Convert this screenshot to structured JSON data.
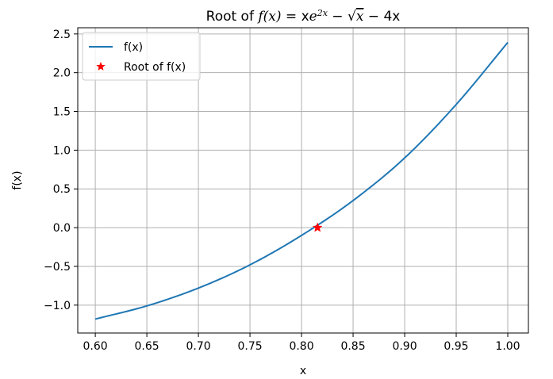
{
  "chart_data": {
    "type": "line",
    "title": {
      "prefix": "Root of ",
      "fx": "f(x)",
      "eq": " = x",
      "e": "e",
      "exp": "2x",
      "minus1": " − ",
      "sqrt_arg": "x",
      "rest": " − 4x"
    },
    "xlabel": "x",
    "ylabel": "f(x)",
    "xlim": [
      0.583,
      1.02
    ],
    "ylim": [
      -1.36,
      2.58
    ],
    "x_ticks": [
      0.6,
      0.65,
      0.7,
      0.75,
      0.8,
      0.85,
      0.9,
      0.95,
      1.0
    ],
    "x_tick_labels": [
      "0.60",
      "0.65",
      "0.70",
      "0.75",
      "0.80",
      "0.85",
      "0.90",
      "0.95",
      "1.00"
    ],
    "y_ticks": [
      -1.0,
      -0.5,
      0.0,
      0.5,
      1.0,
      1.5,
      2.0,
      2.5
    ],
    "y_tick_labels": [
      "−1.0",
      "−0.5",
      "0.0",
      "0.5",
      "1.0",
      "1.5",
      "2.0",
      "2.5"
    ],
    "grid": true,
    "legend_position": "top-left",
    "series": [
      {
        "name": "f(x)",
        "kind": "line",
        "color": "#1f77b4",
        "x": [
          0.6,
          0.65,
          0.7,
          0.75,
          0.8,
          0.85,
          0.9,
          0.95,
          1.0
        ],
        "y": [
          -1.18,
          -1.01,
          -0.78,
          -0.48,
          -0.1,
          0.35,
          0.9,
          1.59,
          2.39
        ]
      },
      {
        "name": "Root of f(x)",
        "kind": "marker",
        "marker": "star",
        "color": "#ff0000",
        "x": [
          0.8155
        ],
        "y": [
          0.0
        ]
      }
    ]
  }
}
